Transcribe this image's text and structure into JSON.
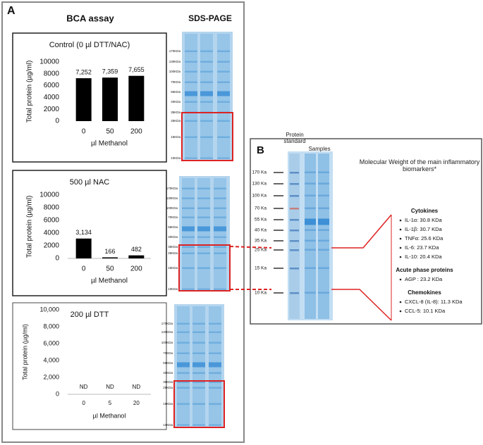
{
  "chart_data": [
    {
      "type": "bar",
      "title": "Control (0 µl DTT/NAC)",
      "ylabel": "Total protein (µg/ml)",
      "xlabel": "µl Methanol",
      "categories": [
        "0",
        "50",
        "200"
      ],
      "values": [
        7252,
        7359,
        7655
      ],
      "value_labels": [
        "7,252",
        "7,359",
        "7,655"
      ],
      "color": "#000000",
      "ylim": [
        0,
        10000
      ],
      "yticks": [
        0,
        2000,
        4000,
        6000,
        8000,
        10000
      ]
    },
    {
      "type": "bar",
      "title": "500 µl NAC",
      "ylabel": "Total protein (µg/ml)",
      "xlabel": "µl Methanol",
      "categories": [
        "0",
        "50",
        "200"
      ],
      "values": [
        3134,
        166,
        482
      ],
      "value_labels": [
        "3,134",
        "166",
        "482"
      ],
      "color": "#000000",
      "ylim": [
        0,
        10000
      ],
      "yticks": [
        0,
        2000,
        4000,
        6000,
        8000,
        10000
      ]
    },
    {
      "type": "bar",
      "title": "200 µl DTT",
      "ylabel": "Total protein (µg/ml)",
      "xlabel": "µl Methanol",
      "categories": [
        "0",
        "5",
        "20"
      ],
      "values": [
        null,
        null,
        null
      ],
      "value_labels": [
        "ND",
        "ND",
        "ND"
      ],
      "color": "#000000",
      "ylim": [
        0,
        10000
      ],
      "yticks": [
        0,
        {
          "value": 2000,
          "label": "2,000"
        },
        {
          "value": 4000,
          "label": "4,000"
        },
        {
          "value": 6000,
          "label": "6,000"
        },
        {
          "value": 8000,
          "label": "8,000"
        },
        {
          "value": 10000,
          "label": "10,000"
        }
      ]
    }
  ],
  "panel_a": {
    "label": "A",
    "heading_left": "BCA assay",
    "heading_right": "SDS-PAGE",
    "gels": [
      {
        "markers": [
          "170KDa",
          "130KDa",
          "100KDa",
          "70KDa",
          "55KDa",
          "40KDa",
          "35KDa",
          "25KDa",
          "15KDa",
          "10KDa"
        ]
      },
      {
        "markers": [
          "170KDa",
          "130KDa",
          "100KDa",
          "70KDa",
          "55KDa",
          "40KDa",
          "35KDa",
          "25KDa",
          "15KDa",
          "10KDa"
        ]
      },
      {
        "markers": [
          "170KDa",
          "130KDa",
          "100KDa",
          "70KDa",
          "55KDa",
          "40KDa",
          "35KDa",
          "25KDa",
          "15KDa",
          "10KDa"
        ]
      }
    ]
  },
  "panel_b": {
    "label": "B",
    "ladder_title": "Protein standard",
    "samples_title": "Samples",
    "ladder_markers": [
      "170 Ka",
      "130 Ka",
      "100 Ka",
      "70 Ka",
      "55 Ka",
      "40 Ka",
      "35 Ka",
      "25 Ka",
      "15 Ka",
      "10 Ka"
    ],
    "heading": "Molecular Weight of the main inflammatory biomarkers*",
    "groups": [
      {
        "title": "Cytokines",
        "items": [
          "IL-1α: 30.8 KDa",
          "IL-1β: 30.7 KDa",
          "TNFα: 25.6 KDa",
          "IL-6: 23.7 KDa",
          "IL-10: 20.4 KDa"
        ]
      },
      {
        "title": "Acute phase proteins",
        "items": [
          "AGP : 23.2 KDa"
        ]
      },
      {
        "title": "Chemokines",
        "items": [
          "CXCL-8 (IL-8): 11.3 KDa",
          "CCL-5: 10.1 KDa"
        ]
      }
    ]
  }
}
